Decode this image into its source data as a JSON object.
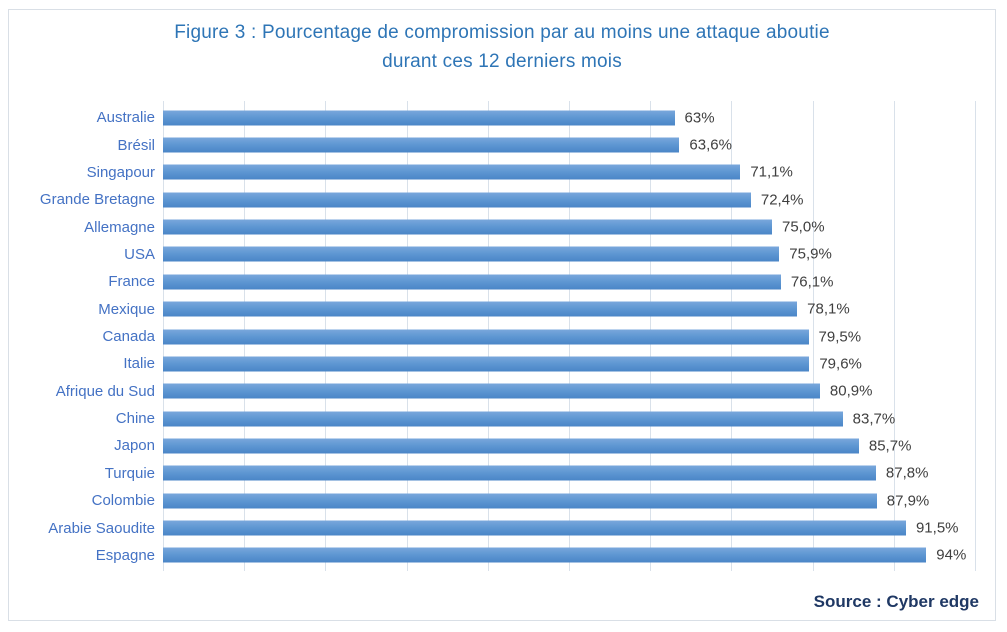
{
  "chart_data": {
    "type": "bar",
    "orientation": "horizontal",
    "title_lines": [
      "Figure 3 : Pourcentage de compromission par au moins une attaque aboutie",
      "durant ces 12 derniers mois"
    ],
    "categories": [
      "Australie",
      "Brésil",
      "Singapour",
      "Grande Bretagne",
      "Allemagne",
      "USA",
      "France",
      "Mexique",
      "Canada",
      "Italie",
      "Afrique du Sud",
      "Chine",
      "Japon",
      "Turquie",
      "Colombie",
      "Arabie Saoudite",
      "Espagne"
    ],
    "values": [
      63,
      63.6,
      71.1,
      72.4,
      75.0,
      75.9,
      76.1,
      78.1,
      79.5,
      79.6,
      80.9,
      83.7,
      85.7,
      87.8,
      87.9,
      91.5,
      94
    ],
    "value_labels": [
      "63%",
      "63,6%",
      "71,1%",
      "72,4%",
      "75,0%",
      "75,9%",
      "76,1%",
      "78,1%",
      "79,5%",
      "79,6%",
      "80,9%",
      "83,7%",
      "85,7%",
      "87,8%",
      "87,9%",
      "91,5%",
      "94%"
    ],
    "xlim": [
      0,
      100
    ],
    "gridline_interval": 10,
    "grid": true,
    "legend": false,
    "source": "Source : Cyber edge",
    "colors": {
      "title": "#2E75B6",
      "category_label": "#4472C4",
      "value_label": "#404040",
      "source": "#1F3864",
      "gridline": "#D9E1EA",
      "border": "#D9DFE6",
      "bar_top": "#79A7DC",
      "bar_mid": "#5D96D2",
      "bar_bottom": "#4A85C7"
    }
  }
}
